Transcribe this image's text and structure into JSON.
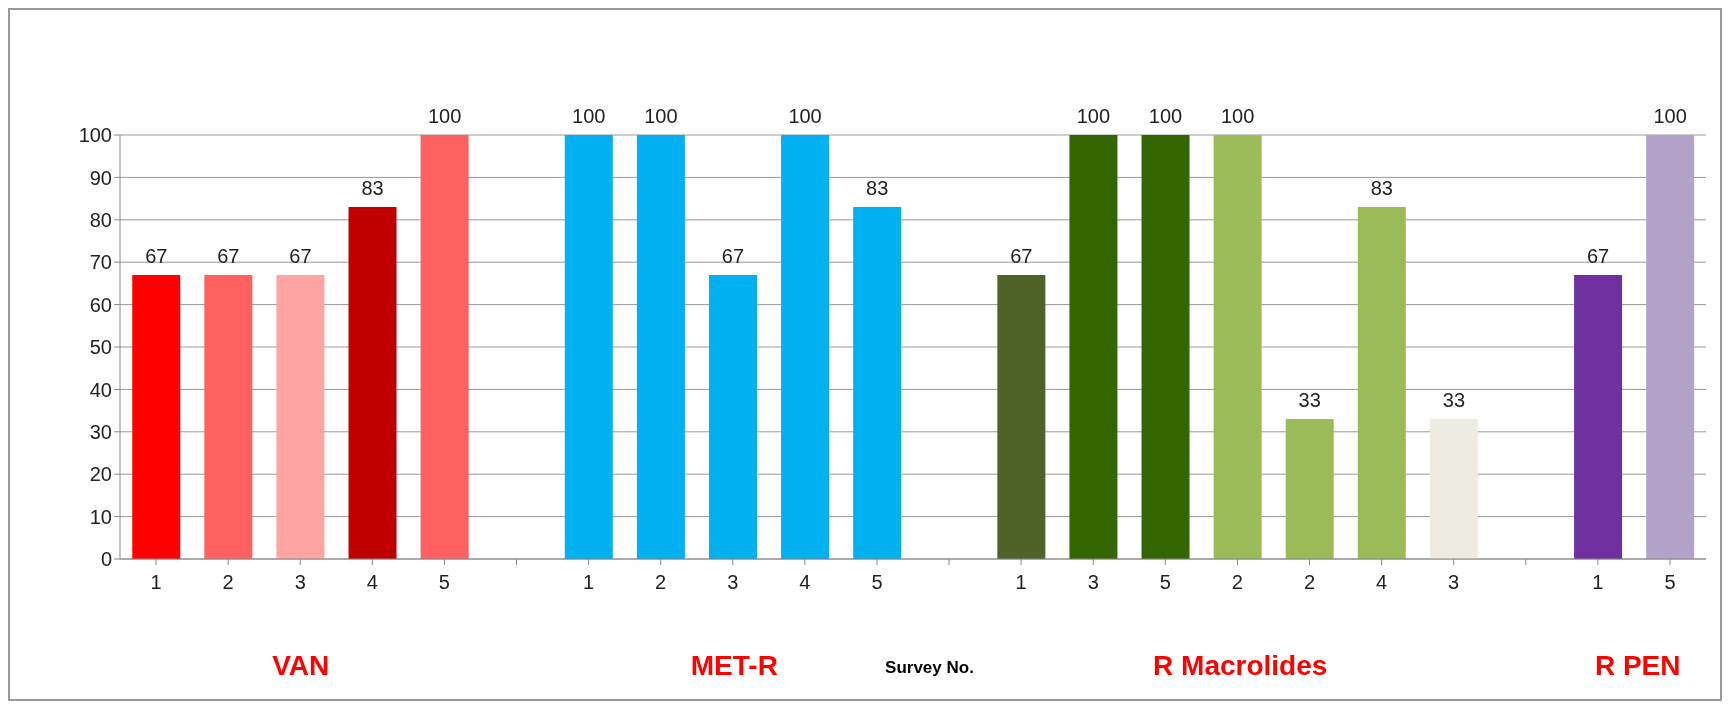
{
  "chart_data": {
    "type": "bar",
    "xlabel": "Survey No.",
    "categories": [
      "1",
      "2",
      "3",
      "4",
      "5",
      null,
      "1",
      "2",
      "3",
      "4",
      "5",
      null,
      "1",
      "3",
      "5",
      "2",
      "2",
      "4",
      "3",
      null,
      "1",
      "5"
    ],
    "values": [
      67,
      67,
      67,
      83,
      100,
      null,
      100,
      100,
      67,
      100,
      83,
      null,
      67,
      100,
      100,
      100,
      33,
      83,
      33,
      null,
      67,
      100
    ],
    "colors": [
      "#ff0000",
      "#ff6161",
      "#ffa3a3",
      "#c00000",
      "#ff6161",
      null,
      "#00b0f0",
      "#00b0f0",
      "#00b0f0",
      "#00b0f0",
      "#00b0f0",
      null,
      "#4f6228",
      "#336600",
      "#336600",
      "#9bbb59",
      "#9bbb59",
      "#9bbb59",
      "#eeece1",
      null,
      "#7030a0",
      "#b3a2c7"
    ],
    "annotations": [
      "VAN",
      "MET-R",
      "R Macrolides",
      "R PEN"
    ],
    "ylim": [
      0,
      100
    ],
    "yticks": [
      0,
      10,
      20,
      30,
      40,
      50,
      60,
      70,
      80,
      90,
      100
    ],
    "grid": "y",
    "data_labels": true
  }
}
